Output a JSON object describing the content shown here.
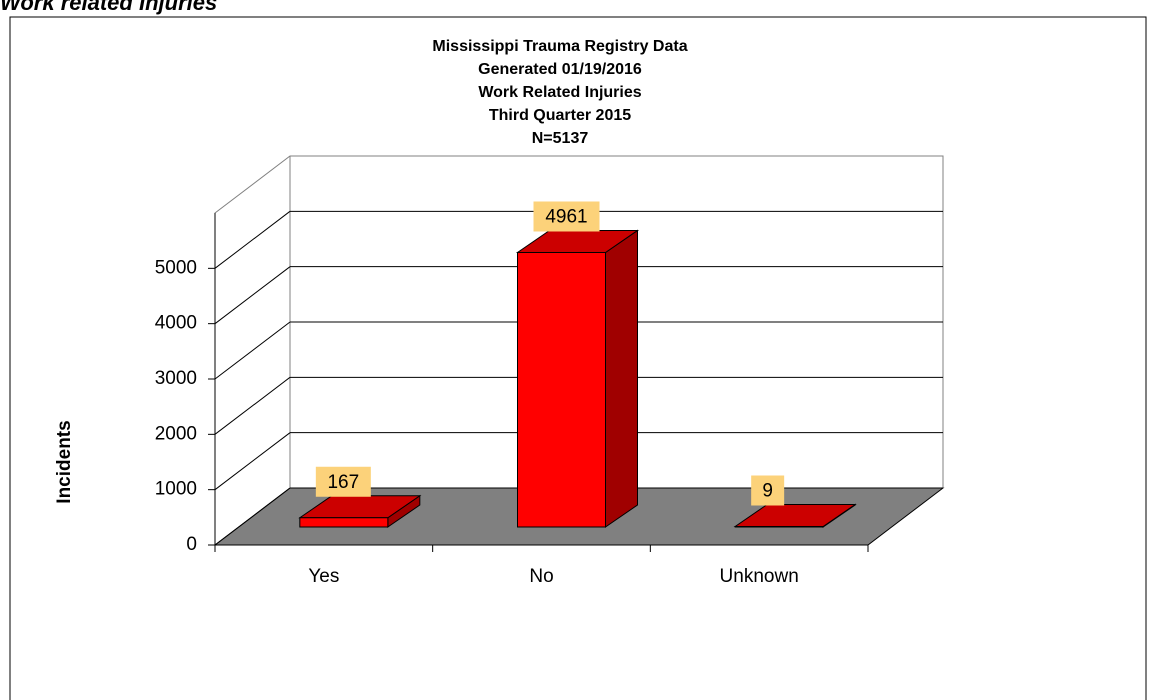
{
  "page_heading": "Work related Injuries",
  "chart_data": {
    "type": "bar3d",
    "title": [
      "Mississippi Trauma Registry Data",
      "Generated 01/19/2016",
      "Work Related Injuries",
      "Third Quarter 2015",
      "N=5137"
    ],
    "ylabel": "Incidents",
    "categories": [
      "Yes",
      "No",
      "Unknown"
    ],
    "values": [
      167,
      4961,
      9
    ],
    "color": "#ff0000",
    "ylim": [
      0,
      6000
    ],
    "yticks": [
      0,
      1000,
      2000,
      3000,
      4000,
      5000
    ],
    "grid": true
  }
}
